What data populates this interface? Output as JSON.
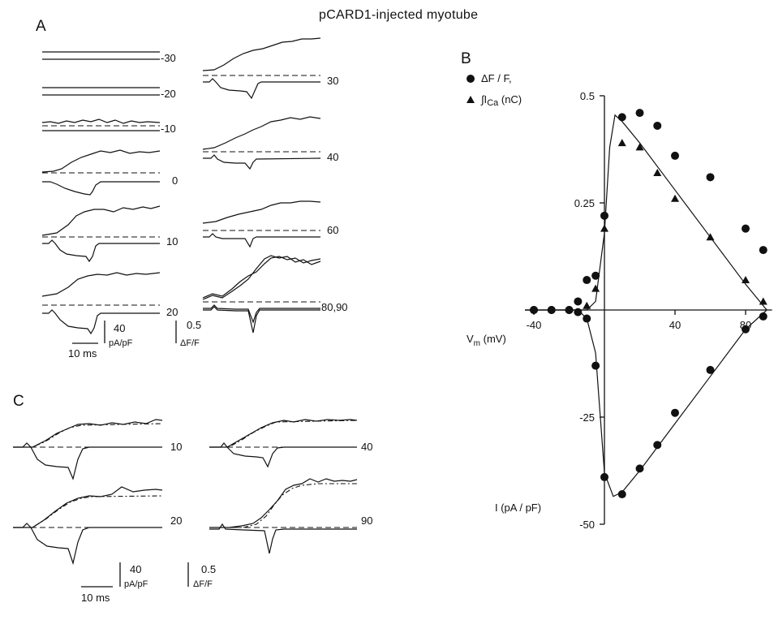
{
  "figure": {
    "title": "pCARD1-injected myotube",
    "panel_a": "A",
    "panel_b": "B",
    "panel_c": "C"
  },
  "panel_a": {
    "left_labels": [
      "-30",
      "-20",
      "-10",
      "0",
      "10",
      "20"
    ],
    "right_labels": [
      "30",
      "40",
      "60",
      "80,90"
    ],
    "scale_time": "10 ms",
    "scale_current_value": "40",
    "scale_current_unit": "pA/pF",
    "scale_fluor_value": "0.5",
    "scale_fluor_unit": "ΔF/F"
  },
  "panel_c": {
    "labels": [
      "10",
      "40",
      "20",
      "90"
    ],
    "scale_time": "10 ms",
    "scale_current_value": "40",
    "scale_current_unit": "pA/pF",
    "scale_fluor_value": "0.5",
    "scale_fluor_unit": "ΔF/F"
  },
  "chart_data": {
    "type": "scatter",
    "xlabel": "V_m (mV)",
    "x_ticks": [
      "-40",
      "40",
      "80"
    ],
    "xlim": [
      -45,
      95
    ],
    "upper_ylim": [
      0,
      0.5
    ],
    "upper_ticks": [
      "0.5",
      "0.25"
    ],
    "lower_ylim": [
      -50,
      0
    ],
    "lower_ticks": [
      "-25",
      "-50"
    ],
    "lower_ylabel": "I (pA / pF)",
    "legend_position": "top-left",
    "legend": {
      "circle": "ΔF / F,",
      "triangle_sym": "∫I",
      "triangle_sub": "Ca",
      "triangle_unit": " (nC)"
    },
    "series": [
      {
        "name": "ΔF / F,",
        "marker": "circle",
        "x": [
          -40,
          -30,
          -20,
          -15,
          -10,
          -5,
          0,
          10,
          20,
          30,
          40,
          60,
          80,
          90
        ],
        "y": [
          0.0,
          0.0,
          0.0,
          0.02,
          0.07,
          0.08,
          0.22,
          0.45,
          0.46,
          0.43,
          0.36,
          0.31,
          0.19,
          0.14
        ]
      },
      {
        "name": "∫ICa (nC)",
        "marker": "triangle",
        "x": [
          -10,
          -5,
          0,
          10,
          20,
          30,
          40,
          60,
          80,
          90
        ],
        "y": [
          0.01,
          0.05,
          0.19,
          0.39,
          0.38,
          0.32,
          0.26,
          0.17,
          0.07,
          0.02
        ]
      },
      {
        "name": "I (pA / pF)",
        "marker": "circle",
        "x": [
          -40,
          -30,
          -20,
          -15,
          -10,
          -5,
          0,
          10,
          20,
          30,
          40,
          60,
          80,
          90
        ],
        "y": [
          0.0,
          0.0,
          0.0,
          -0.5,
          -2.0,
          -13.0,
          -39.0,
          -43.0,
          -37.0,
          -31.5,
          -24.0,
          -14.0,
          -4.5,
          -1.5
        ]
      }
    ],
    "fit_integral": {
      "x": [
        -45,
        -10,
        -5,
        0,
        3,
        6,
        10,
        20,
        40,
        60,
        80,
        92
      ],
      "y": [
        0.0,
        0.0,
        0.02,
        0.18,
        0.38,
        0.455,
        0.44,
        0.39,
        0.28,
        0.17,
        0.06,
        0.0
      ]
    },
    "fit_current": {
      "x": [
        -45,
        -15,
        -10,
        -5,
        0,
        5,
        10,
        20,
        40,
        60,
        80,
        92
      ],
      "y": [
        0.0,
        0.0,
        -2.0,
        -10.0,
        -38.0,
        -43.5,
        -42.5,
        -37.5,
        -26.5,
        -15.5,
        -4.5,
        0.0
      ]
    }
  }
}
